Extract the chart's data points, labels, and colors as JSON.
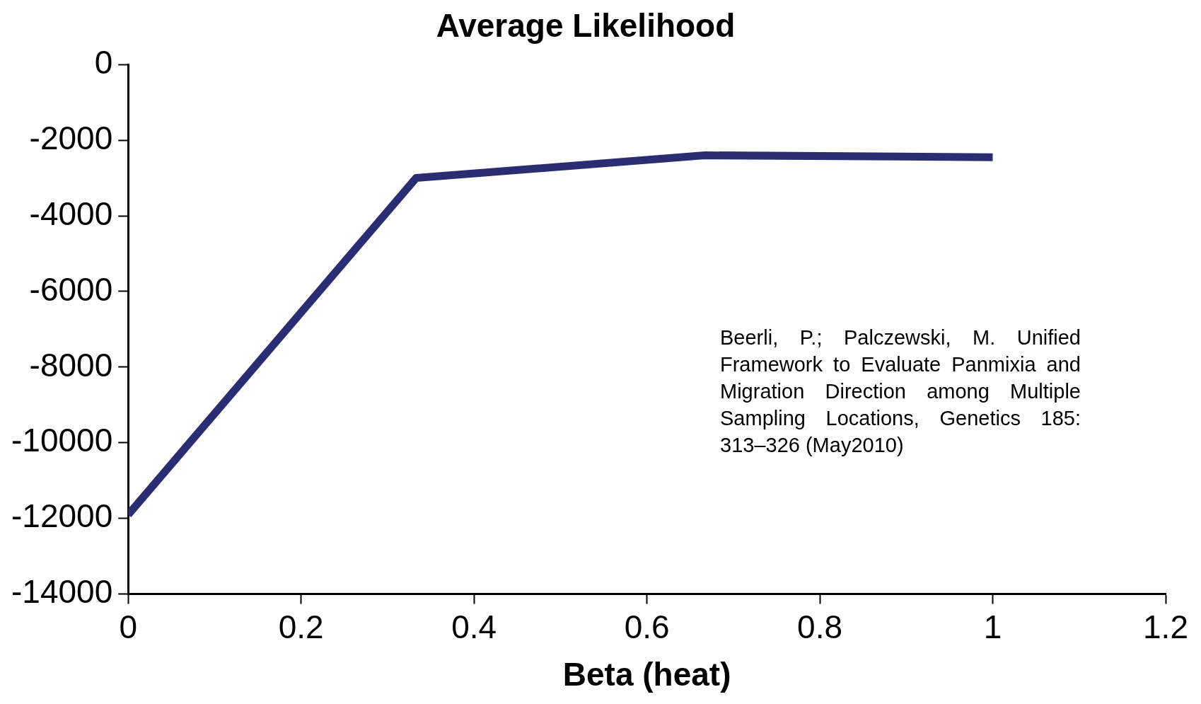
{
  "chart_data": {
    "type": "line",
    "title": "Average Likelihood",
    "xlabel": "Beta (heat)",
    "x": [
      0,
      0.333,
      0.667,
      1
    ],
    "series": [
      {
        "color": "#2b2d72",
        "values": [
          -11900,
          -3000,
          -2400,
          -2450
        ]
      }
    ],
    "xlim": [
      0,
      1.2
    ],
    "xticks": [
      0,
      0.2,
      0.4,
      0.6,
      0.8,
      1,
      1.2
    ],
    "ylim": [
      -14000,
      0
    ],
    "yticks": [
      0,
      -2000,
      -4000,
      -6000,
      -8000,
      -10000,
      -12000,
      -14000
    ],
    "grid": false,
    "legend": false,
    "marker": "none",
    "line_style": "solid",
    "annotations": [
      "Beerli, P.; Palczewski, M. Unified Framework to Evaluate Panmixia and Migration Direction among Multiple Sampling Locations, Genetics 185: 313–326 (May2010)"
    ]
  }
}
